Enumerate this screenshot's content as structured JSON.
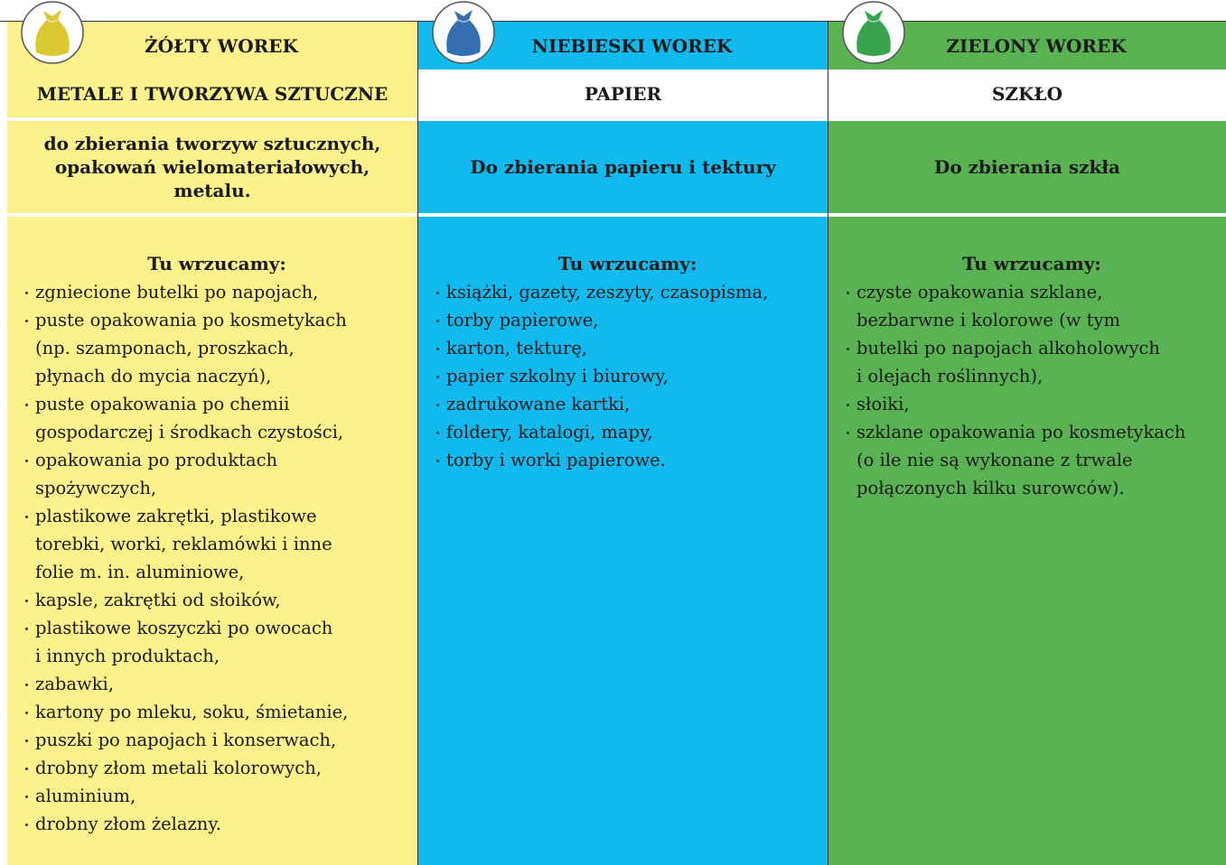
{
  "columns": [
    {
      "bag": "ŻÓŁTY WOREK",
      "category": "METALE I TWORZYWA SZTUCZNE",
      "purpose": [
        "do zbierania tworzyw sztucznych,",
        "opakowań wielomateriałowych,",
        "metalu."
      ],
      "list_title": "Tu wrzucamy:",
      "items": [
        [
          "zgniecione butelki po napojach,"
        ],
        [
          "puste opakowania po kosmetykach",
          "(np. szamponach, proszkach,",
          "płynach do mycia naczyń),"
        ],
        [
          "puste opakowania po chemii",
          "gospodarczej i środkach czystości,"
        ],
        [
          "opakowania po produktach",
          "spożywczych,"
        ],
        [
          "plastikowe zakrętki, plastikowe",
          "torebki, worki, reklamówki i inne",
          "folie m. in. aluminiowe,"
        ],
        [
          "kapsle, zakrętki od słoików,"
        ],
        [
          "plastikowe koszyczki po owocach",
          "i innych produktach,"
        ],
        [
          "zabawki,"
        ],
        [
          "kartony po mleku, soku, śmietanie,"
        ],
        [
          "puszki po napojach i konserwach,"
        ],
        [
          "drobny złom metali kolorowych,"
        ],
        [
          "aluminium,"
        ],
        [
          "drobny złom żelazny."
        ]
      ]
    },
    {
      "bag": "NIEBIESKI WOREK",
      "category": "PAPIER",
      "purpose": [
        "Do zbierania papieru i tektury"
      ],
      "list_title": "Tu wrzucamy:",
      "items": [
        [
          "książki, gazety, zeszyty, czasopisma,"
        ],
        [
          "torby papierowe,"
        ],
        [
          "karton, tekturę,"
        ],
        [
          "papier szkolny i biurowy,"
        ],
        [
          "zadrukowane kartki,"
        ],
        [
          "foldery, katalogi, mapy,"
        ],
        [
          "torby i worki papierowe."
        ]
      ]
    },
    {
      "bag": "ZIELONY WOREK",
      "category": "SZKŁO",
      "purpose": [
        "Do zbierania szkła"
      ],
      "list_title": "Tu wrzucamy:",
      "items": [
        [
          "czyste opakowania szklane,",
          "bezbarwne i kolorowe (w tym"
        ],
        [
          "butelki po napojach alkoholowych",
          "i olejach roślinnych),"
        ],
        [
          "słoiki,"
        ],
        [
          "szklane opakowania po kosmetykach",
          "(o ile nie są wykonane z trwale",
          "połączonych kilku surowców)."
        ]
      ]
    }
  ]
}
